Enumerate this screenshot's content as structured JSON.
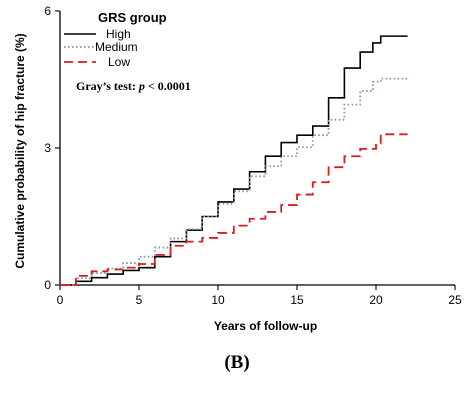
{
  "chart_data": {
    "type": "line",
    "step": true,
    "xlabel": "Years of follow-up",
    "ylabel": "Cumulative probability of hip fracture (%)",
    "xlim": [
      0,
      25
    ],
    "ylim": [
      0,
      6
    ],
    "x_ticks": [
      0,
      5,
      10,
      15,
      20,
      25
    ],
    "y_ticks": [
      0,
      3,
      6
    ],
    "grid": false,
    "legend": {
      "title": "GRS group",
      "position": "top-left",
      "entries": [
        "High",
        "Medium",
        "Low"
      ]
    },
    "annotation": {
      "prefix": "Gray’s test: ",
      "p_symbol": "p",
      "suffix": " < 0.0001"
    },
    "series": [
      {
        "name": "High",
        "color": "#000000",
        "dash": "solid",
        "points": [
          [
            0,
            0
          ],
          [
            1,
            0.08
          ],
          [
            2,
            0.16
          ],
          [
            3,
            0.24
          ],
          [
            4,
            0.32
          ],
          [
            5,
            0.38
          ],
          [
            6,
            0.62
          ],
          [
            7,
            0.95
          ],
          [
            8,
            1.2
          ],
          [
            9,
            1.5
          ],
          [
            10,
            1.82
          ],
          [
            11,
            2.1
          ],
          [
            12,
            2.48
          ],
          [
            13,
            2.82
          ],
          [
            14,
            3.12
          ],
          [
            15,
            3.28
          ],
          [
            16,
            3.48
          ],
          [
            17,
            4.1
          ],
          [
            18,
            4.75
          ],
          [
            19,
            5.1
          ],
          [
            19.8,
            5.3
          ],
          [
            20.3,
            5.45
          ],
          [
            21,
            5.45
          ],
          [
            22,
            5.45
          ]
        ]
      },
      {
        "name": "Medium",
        "color": "#8a96aa",
        "dash": "dotted",
        "points": [
          [
            0,
            0
          ],
          [
            1,
            0.15
          ],
          [
            2,
            0.26
          ],
          [
            3,
            0.36
          ],
          [
            4,
            0.48
          ],
          [
            5,
            0.62
          ],
          [
            6,
            0.82
          ],
          [
            7,
            1.02
          ],
          [
            8,
            1.22
          ],
          [
            9,
            1.5
          ],
          [
            10,
            1.78
          ],
          [
            11,
            2.05
          ],
          [
            12,
            2.38
          ],
          [
            13,
            2.6
          ],
          [
            14,
            2.82
          ],
          [
            15,
            3.02
          ],
          [
            16,
            3.28
          ],
          [
            17,
            3.62
          ],
          [
            18,
            3.95
          ],
          [
            19,
            4.25
          ],
          [
            19.8,
            4.45
          ],
          [
            20.3,
            4.52
          ],
          [
            21,
            4.52
          ],
          [
            22,
            4.52
          ]
        ]
      },
      {
        "name": "Low",
        "color": "#d42020",
        "dash": "dashed",
        "points": [
          [
            0,
            0
          ],
          [
            1,
            0.2
          ],
          [
            2,
            0.3
          ],
          [
            3,
            0.34
          ],
          [
            4,
            0.38
          ],
          [
            5,
            0.46
          ],
          [
            6,
            0.66
          ],
          [
            7,
            0.86
          ],
          [
            8,
            0.95
          ],
          [
            9,
            1.03
          ],
          [
            10,
            1.14
          ],
          [
            11,
            1.3
          ],
          [
            12,
            1.45
          ],
          [
            13,
            1.6
          ],
          [
            14,
            1.75
          ],
          [
            15,
            1.98
          ],
          [
            16,
            2.25
          ],
          [
            17,
            2.58
          ],
          [
            18,
            2.82
          ],
          [
            19,
            2.98
          ],
          [
            20,
            3.1
          ],
          [
            20.3,
            3.3
          ],
          [
            21,
            3.3
          ],
          [
            22,
            3.3
          ]
        ]
      }
    ]
  },
  "panel_label": "(B)"
}
